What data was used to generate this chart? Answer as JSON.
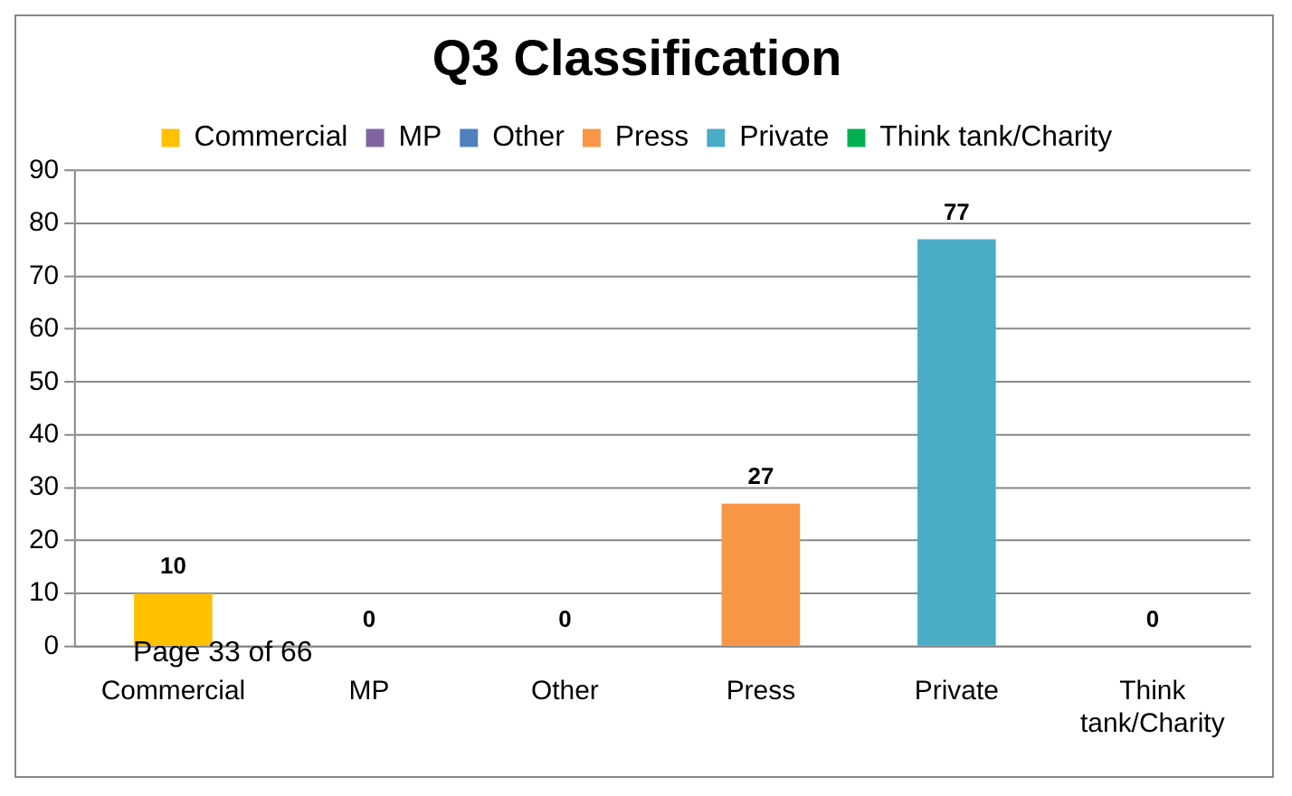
{
  "chart_data": {
    "type": "bar",
    "title": "Q3 Classification",
    "categories": [
      "Commercial",
      "MP",
      "Other",
      "Press",
      "Private",
      "Think tank/Charity"
    ],
    "series": [
      {
        "name": "Commercial",
        "color": "#ffc000",
        "values": [
          10,
          null,
          null,
          null,
          null,
          null
        ]
      },
      {
        "name": "MP",
        "color": "#8064a2",
        "values": [
          null,
          0,
          null,
          null,
          null,
          null
        ]
      },
      {
        "name": "Other",
        "color": "#4f81bd",
        "values": [
          null,
          null,
          0,
          null,
          null,
          null
        ]
      },
      {
        "name": "Press",
        "color": "#f79646",
        "values": [
          null,
          null,
          null,
          27,
          null,
          null
        ]
      },
      {
        "name": "Private",
        "color": "#4bacc6",
        "values": [
          null,
          null,
          null,
          null,
          77,
          null
        ]
      },
      {
        "name": "Think tank/Charity",
        "color": "#00b050",
        "values": [
          null,
          null,
          null,
          null,
          null,
          0
        ]
      }
    ],
    "ylim": [
      0,
      90
    ],
    "yticks": [
      0,
      10,
      20,
      30,
      40,
      50,
      60,
      70,
      80,
      90
    ],
    "grid": "y",
    "legend": "top",
    "data_labels": true,
    "annotations": [
      "Page 33 of 66"
    ]
  }
}
